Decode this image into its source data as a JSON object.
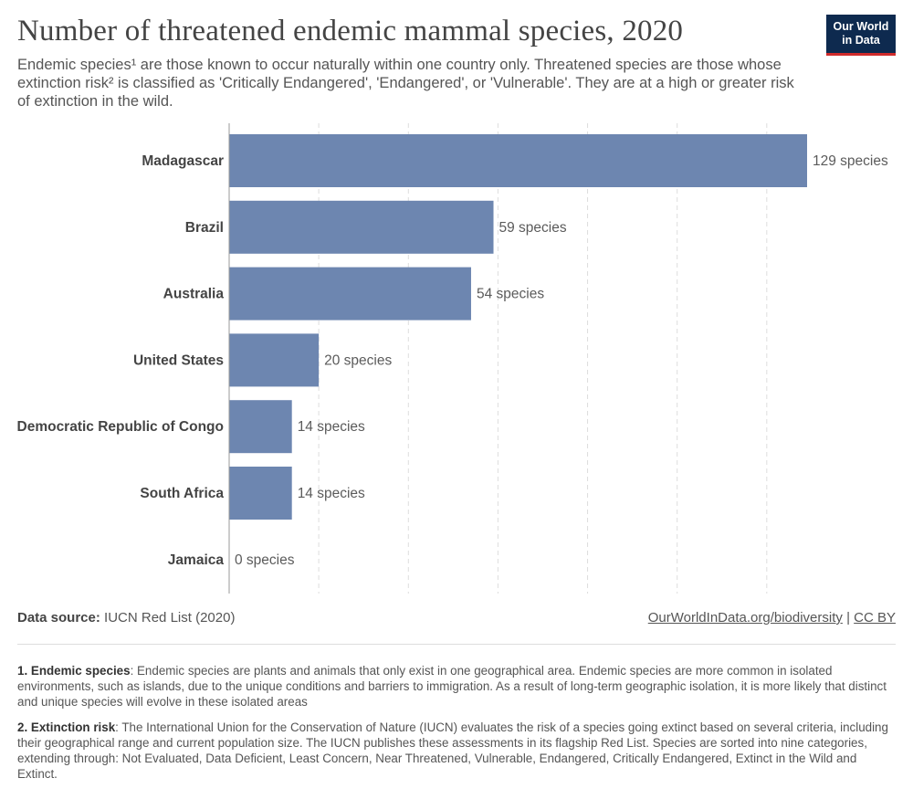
{
  "header": {
    "title": "Number of threatened endemic mammal species, 2020",
    "subtitle": "Endemic species¹ are those known to occur naturally within one country only. Threatened species are those whose extinction risk² is classified as 'Critically Endangered', 'Endangered', or 'Vulnerable'. They are at a high or greater risk of extinction in the wild.",
    "logo_line1": "Our World",
    "logo_line2": "in Data"
  },
  "chart_data": {
    "type": "bar",
    "orientation": "horizontal",
    "categories": [
      "Madagascar",
      "Brazil",
      "Australia",
      "United States",
      "Democratic Republic of Congo",
      "South Africa",
      "Jamaica"
    ],
    "values": [
      129,
      59,
      54,
      20,
      14,
      14,
      0
    ],
    "value_labels": [
      "129 species",
      "59 species",
      "54 species",
      "20 species",
      "14 species",
      "14 species",
      "0 species"
    ],
    "unit": "species",
    "xlim": [
      0,
      129
    ],
    "gridlines": [
      20,
      40,
      60,
      80,
      100,
      120
    ],
    "grid": true,
    "bar_color": "#6d86b0"
  },
  "footer": {
    "source_label": "Data source:",
    "source_value": "IUCN Red List (2020)",
    "link": "OurWorldInData.org/biodiversity",
    "separator": "|",
    "license": "CC BY"
  },
  "notes": [
    {
      "label": "1. Endemic species",
      "text": ": Endemic species are plants and animals that only exist in one geographical area. Endemic species are more common in isolated environments, such as islands, due to the unique conditions and barriers to immigration. As a result of long-term geographic isolation, it is more likely that distinct and unique species will evolve in these isolated areas"
    },
    {
      "label": "2. Extinction risk",
      "text": ": The International Union for the Conservation of Nature (IUCN) evaluates the risk of a species going extinct based on several criteria, including their geographical range and current population size. The IUCN publishes these assessments in its flagship Red List. Species are sorted into nine categories, extending through: Not Evaluated, Data Deficient, Least Concern, Near Threatened, Vulnerable, Endangered, Critically Endangered, Extinct in the Wild and Extinct."
    }
  ]
}
